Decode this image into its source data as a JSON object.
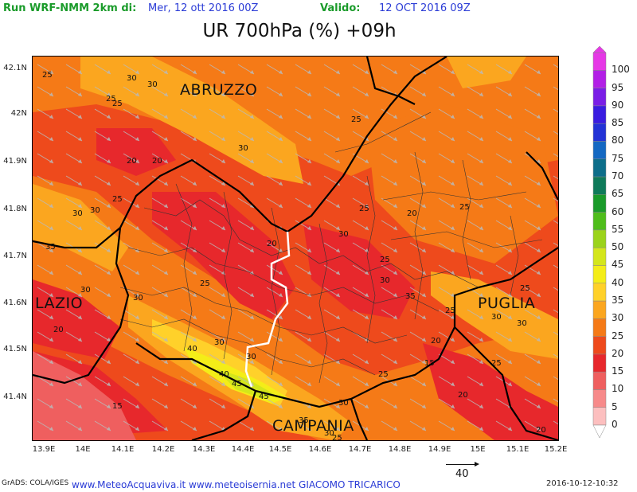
{
  "header": {
    "run_label": "Run WRF-NMM 2km di:",
    "run_value": "Mer, 12 ott 2016 00Z",
    "valid_label": "Valido:",
    "valid_value": "12 OCT 2016 09Z",
    "title": "UR 700hPa (%) +09h"
  },
  "axes": {
    "y_ticks": [
      "42.1N",
      "42N",
      "41.9N",
      "41.8N",
      "41.7N",
      "41.6N",
      "41.5N",
      "41.4N"
    ],
    "x_ticks": [
      "13.9E",
      "14E",
      "14.1E",
      "14.2E",
      "14.3E",
      "14.4E",
      "14.5E",
      "14.6E",
      "14.7E",
      "14.8E",
      "14.9E",
      "15E",
      "15.1E",
      "15.2E"
    ]
  },
  "regions": {
    "abruzzo": "ABRUZZO",
    "lazio": "LAZIO",
    "puglia": "PUGLIA",
    "campania": "CAMPANIA"
  },
  "contour_labels": [
    "30",
    "30",
    "25",
    "25",
    "25",
    "30",
    "20",
    "20",
    "25",
    "30",
    "25",
    "25",
    "35",
    "30",
    "30",
    "30",
    "25",
    "20",
    "25",
    "25",
    "35",
    "30",
    "40",
    "30",
    "30",
    "20",
    "40",
    "45",
    "45",
    "25",
    "15",
    "25",
    "20",
    "30",
    "15",
    "30",
    "35",
    "30",
    "25",
    "20",
    "25",
    "30",
    "20",
    "25",
    "30",
    "20"
  ],
  "colorbar": {
    "levels": [
      "0",
      "5",
      "10",
      "15",
      "20",
      "25",
      "30",
      "35",
      "40",
      "45",
      "50",
      "55",
      "60",
      "65",
      "70",
      "75",
      "80",
      "85",
      "90",
      "95",
      "100"
    ],
    "colors": [
      "#fcbfbf",
      "#f78a8a",
      "#ef5f5f",
      "#e7282c",
      "#ee4a1c",
      "#f57a17",
      "#fba61f",
      "#ffd12a",
      "#f4ed18",
      "#d4e61b",
      "#9bd31b",
      "#4fbd1b",
      "#1a9b2a",
      "#0f7a5a",
      "#0d6e8a",
      "#1468c2",
      "#2333d6",
      "#3a1ce0",
      "#7a1ee6",
      "#b21fe6",
      "#e638e6"
    ]
  },
  "wind_reference": "40",
  "footer": {
    "grads": "GrADS: COLA/IGES",
    "credit": "www.MeteoAcquaviva.it www.meteoisernia.net GIACOMO TRICARICO",
    "date": "2016-10-12-10:32"
  }
}
